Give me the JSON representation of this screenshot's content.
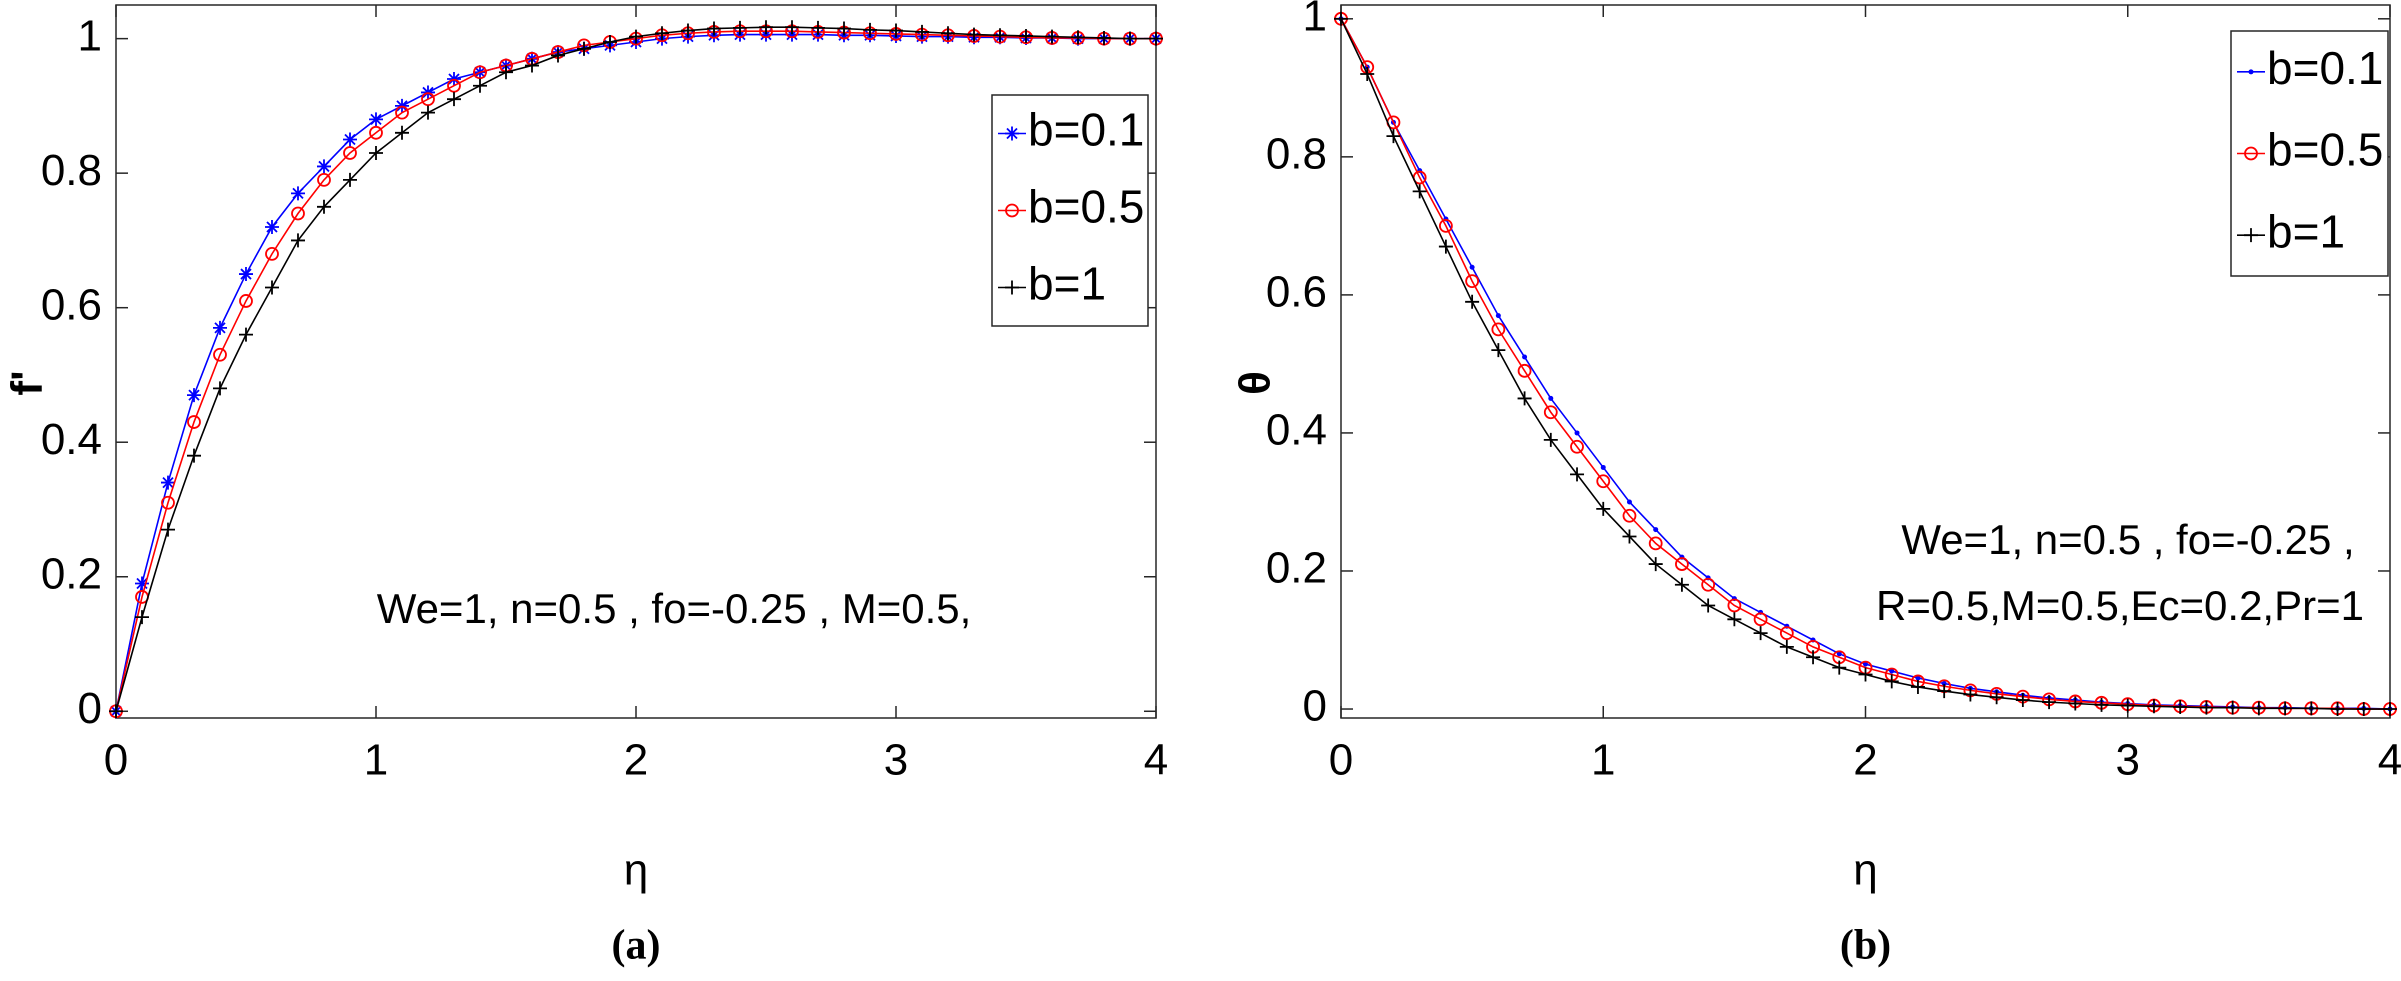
{
  "chart_data": [
    {
      "type": "line",
      "x_label": "η",
      "y_label": "f'",
      "caption": "(a)",
      "annotation": [
        "We=1, n=0.5 , fo=-0.25 , M=0.5,"
      ],
      "xlim": [
        0,
        4
      ],
      "ylim": [
        -0.01,
        1.05
      ],
      "xticks": [
        0,
        1,
        2,
        3,
        4
      ],
      "yticks": [
        0,
        0.2,
        0.4,
        0.6,
        0.8,
        1
      ],
      "x": [
        0,
        0.1,
        0.2,
        0.3,
        0.4,
        0.5,
        0.6,
        0.7,
        0.8,
        0.9,
        1,
        1.1,
        1.2,
        1.3,
        1.4,
        1.5,
        1.6,
        1.7,
        1.8,
        1.9,
        2,
        2.1,
        2.2,
        2.3,
        2.4,
        2.5,
        2.6,
        2.7,
        2.8,
        2.9,
        3,
        3.1,
        3.2,
        3.3,
        3.4,
        3.5,
        3.6,
        3.7,
        3.8,
        3.9,
        4
      ],
      "series": [
        {
          "name": "b=0.1",
          "color": "#0000ff",
          "marker": "star",
          "values": [
            0,
            0.19,
            0.34,
            0.47,
            0.57,
            0.65,
            0.72,
            0.77,
            0.81,
            0.85,
            0.88,
            0.9,
            0.92,
            0.94,
            0.95,
            0.96,
            0.97,
            0.98,
            0.985,
            0.99,
            0.995,
            1.0,
            1.003,
            1.005,
            1.006,
            1.006,
            1.006,
            1.006,
            1.005,
            1.005,
            1.004,
            1.003,
            1.003,
            1.002,
            1.002,
            1.001,
            1.001,
            1.0,
            1.0,
            1.0,
            1.0
          ]
        },
        {
          "name": "b=0.5",
          "color": "#ff0000",
          "marker": "circle",
          "values": [
            0,
            0.17,
            0.31,
            0.43,
            0.53,
            0.61,
            0.68,
            0.74,
            0.79,
            0.83,
            0.86,
            0.89,
            0.91,
            0.93,
            0.95,
            0.96,
            0.97,
            0.98,
            0.99,
            0.995,
            1.0,
            1.005,
            1.008,
            1.01,
            1.011,
            1.011,
            1.011,
            1.01,
            1.009,
            1.008,
            1.007,
            1.006,
            1.005,
            1.004,
            1.003,
            1.002,
            1.001,
            1.001,
            1.0,
            1.0,
            1.0
          ]
        },
        {
          "name": "b=1",
          "color": "#000000",
          "marker": "plus",
          "values": [
            0,
            0.14,
            0.27,
            0.38,
            0.48,
            0.56,
            0.63,
            0.7,
            0.75,
            0.79,
            0.83,
            0.86,
            0.89,
            0.91,
            0.93,
            0.95,
            0.96,
            0.975,
            0.985,
            0.995,
            1.003,
            1.008,
            1.012,
            1.015,
            1.016,
            1.017,
            1.017,
            1.016,
            1.015,
            1.013,
            1.012,
            1.01,
            1.008,
            1.006,
            1.005,
            1.004,
            1.003,
            1.002,
            1.001,
            1.0,
            1.0
          ]
        }
      ]
    },
    {
      "type": "line",
      "x_label": "η",
      "y_label": "θ",
      "caption": "(b)",
      "annotation": [
        "We=1, n=0.5 , fo=-0.25 ,",
        "R=0.5,M=0.5,Ec=0.2,Pr=1"
      ],
      "xlim": [
        0,
        4
      ],
      "ylim": [
        -0.013,
        1.02
      ],
      "xticks": [
        0,
        1,
        2,
        3,
        4
      ],
      "yticks": [
        0,
        0.2,
        0.4,
        0.6,
        0.8,
        1
      ],
      "x": [
        0,
        0.1,
        0.2,
        0.3,
        0.4,
        0.5,
        0.6,
        0.7,
        0.8,
        0.9,
        1,
        1.1,
        1.2,
        1.3,
        1.4,
        1.5,
        1.6,
        1.7,
        1.8,
        1.9,
        2,
        2.1,
        2.2,
        2.3,
        2.4,
        2.5,
        2.6,
        2.7,
        2.8,
        2.9,
        3,
        3.1,
        3.2,
        3.3,
        3.4,
        3.5,
        3.6,
        3.7,
        3.8,
        3.9,
        4
      ],
      "series": [
        {
          "name": "b=0.1",
          "color": "#0000ff",
          "marker": "dot",
          "values": [
            1,
            0.93,
            0.85,
            0.78,
            0.71,
            0.64,
            0.57,
            0.51,
            0.45,
            0.4,
            0.35,
            0.3,
            0.26,
            0.22,
            0.19,
            0.16,
            0.14,
            0.12,
            0.1,
            0.08,
            0.065,
            0.055,
            0.045,
            0.037,
            0.03,
            0.025,
            0.02,
            0.016,
            0.013,
            0.01,
            0.008,
            0.006,
            0.005,
            0.004,
            0.003,
            0.002,
            0.002,
            0.001,
            0.001,
            0.001,
            0
          ]
        },
        {
          "name": "b=0.5",
          "color": "#ff0000",
          "marker": "circle",
          "values": [
            1,
            0.93,
            0.85,
            0.77,
            0.7,
            0.62,
            0.55,
            0.49,
            0.43,
            0.38,
            0.33,
            0.28,
            0.24,
            0.21,
            0.18,
            0.15,
            0.13,
            0.11,
            0.09,
            0.075,
            0.06,
            0.05,
            0.04,
            0.033,
            0.027,
            0.022,
            0.018,
            0.014,
            0.011,
            0.009,
            0.007,
            0.005,
            0.004,
            0.003,
            0.002,
            0.002,
            0.001,
            0.001,
            0.001,
            0,
            0
          ]
        },
        {
          "name": "b=1",
          "color": "#000000",
          "marker": "plus",
          "values": [
            1,
            0.92,
            0.83,
            0.75,
            0.67,
            0.59,
            0.52,
            0.45,
            0.39,
            0.34,
            0.29,
            0.25,
            0.21,
            0.18,
            0.15,
            0.13,
            0.11,
            0.09,
            0.075,
            0.06,
            0.05,
            0.04,
            0.032,
            0.026,
            0.021,
            0.017,
            0.013,
            0.01,
            0.008,
            0.006,
            0.005,
            0.004,
            0.003,
            0.002,
            0.002,
            0.001,
            0.001,
            0.001,
            0,
            0,
            0
          ]
        }
      ]
    }
  ]
}
